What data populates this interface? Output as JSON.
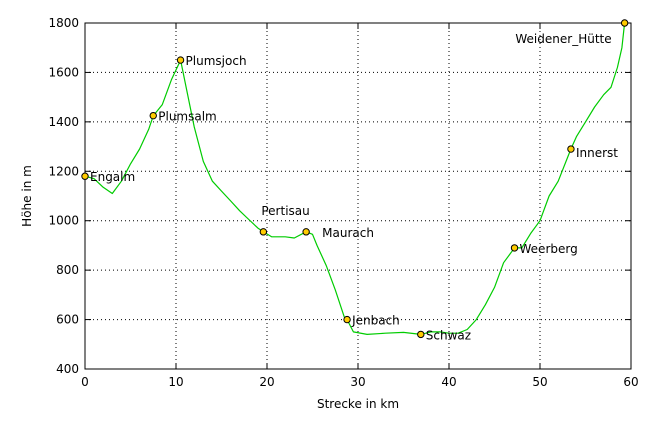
{
  "chart_data": {
    "type": "line",
    "title": "",
    "xlabel": "Strecke in km",
    "ylabel": "Höhe in m",
    "xlim": [
      0,
      60
    ],
    "ylim": [
      400,
      1800
    ],
    "xticks": [
      0,
      10,
      20,
      30,
      40,
      50,
      60
    ],
    "yticks": [
      400,
      600,
      800,
      1000,
      1200,
      1400,
      1600,
      1800
    ],
    "grid": true,
    "line_color": "#00cc00",
    "marker_color": "#ffcc00",
    "series": [
      {
        "values": [
          [
            0.0,
            1180
          ],
          [
            1.0,
            1170
          ],
          [
            2.0,
            1135
          ],
          [
            3.0,
            1110
          ],
          [
            4.0,
            1160
          ],
          [
            5.0,
            1230
          ],
          [
            6.0,
            1290
          ],
          [
            7.0,
            1370
          ],
          [
            7.5,
            1425
          ],
          [
            8.5,
            1470
          ],
          [
            9.5,
            1570
          ],
          [
            10.5,
            1650
          ],
          [
            11.0,
            1560
          ],
          [
            12.0,
            1380
          ],
          [
            13.0,
            1240
          ],
          [
            14.0,
            1160
          ],
          [
            15.0,
            1120
          ],
          [
            16.0,
            1080
          ],
          [
            17.0,
            1040
          ],
          [
            18.0,
            1005
          ],
          [
            19.0,
            970
          ],
          [
            19.6,
            955
          ],
          [
            20.5,
            935
          ],
          [
            22.0,
            935
          ],
          [
            23.0,
            930
          ],
          [
            24.3,
            955
          ],
          [
            25.0,
            945
          ],
          [
            25.5,
            900
          ],
          [
            26.5,
            820
          ],
          [
            27.5,
            720
          ],
          [
            28.5,
            610
          ],
          [
            28.8,
            600
          ],
          [
            29.5,
            550
          ],
          [
            31.0,
            540
          ],
          [
            33.0,
            545
          ],
          [
            35.0,
            548
          ],
          [
            36.9,
            540
          ],
          [
            38.0,
            550
          ],
          [
            39.0,
            550
          ],
          [
            40.0,
            545
          ],
          [
            41.0,
            545
          ],
          [
            42.0,
            560
          ],
          [
            43.0,
            600
          ],
          [
            44.0,
            660
          ],
          [
            45.0,
            730
          ],
          [
            46.0,
            830
          ],
          [
            47.2,
            890
          ],
          [
            48.0,
            890
          ],
          [
            49.0,
            950
          ],
          [
            50.0,
            1000
          ],
          [
            51.0,
            1100
          ],
          [
            52.0,
            1160
          ],
          [
            53.4,
            1290
          ],
          [
            54.0,
            1340
          ],
          [
            55.0,
            1400
          ],
          [
            56.0,
            1460
          ],
          [
            57.0,
            1510
          ],
          [
            57.8,
            1540
          ],
          [
            58.5,
            1620
          ],
          [
            59.0,
            1700
          ],
          [
            59.3,
            1800
          ]
        ]
      }
    ],
    "points": [
      {
        "name": "Engalm",
        "x": 0.0,
        "y": 1180
      },
      {
        "name": "Plumsalm",
        "x": 7.5,
        "y": 1425
      },
      {
        "name": "Plumsjoch",
        "x": 10.5,
        "y": 1650
      },
      {
        "name": "Pertisau",
        "x": 19.6,
        "y": 955
      },
      {
        "name": "Maurach",
        "x": 24.3,
        "y": 955
      },
      {
        "name": "Jenbach",
        "x": 28.8,
        "y": 600
      },
      {
        "name": "Schwaz",
        "x": 36.9,
        "y": 540
      },
      {
        "name": "Weerberg",
        "x": 47.2,
        "y": 890
      },
      {
        "name": "Innerst",
        "x": 53.4,
        "y": 1290
      },
      {
        "name": "Weidener_Hütte",
        "x": 59.3,
        "y": 1800
      }
    ]
  }
}
